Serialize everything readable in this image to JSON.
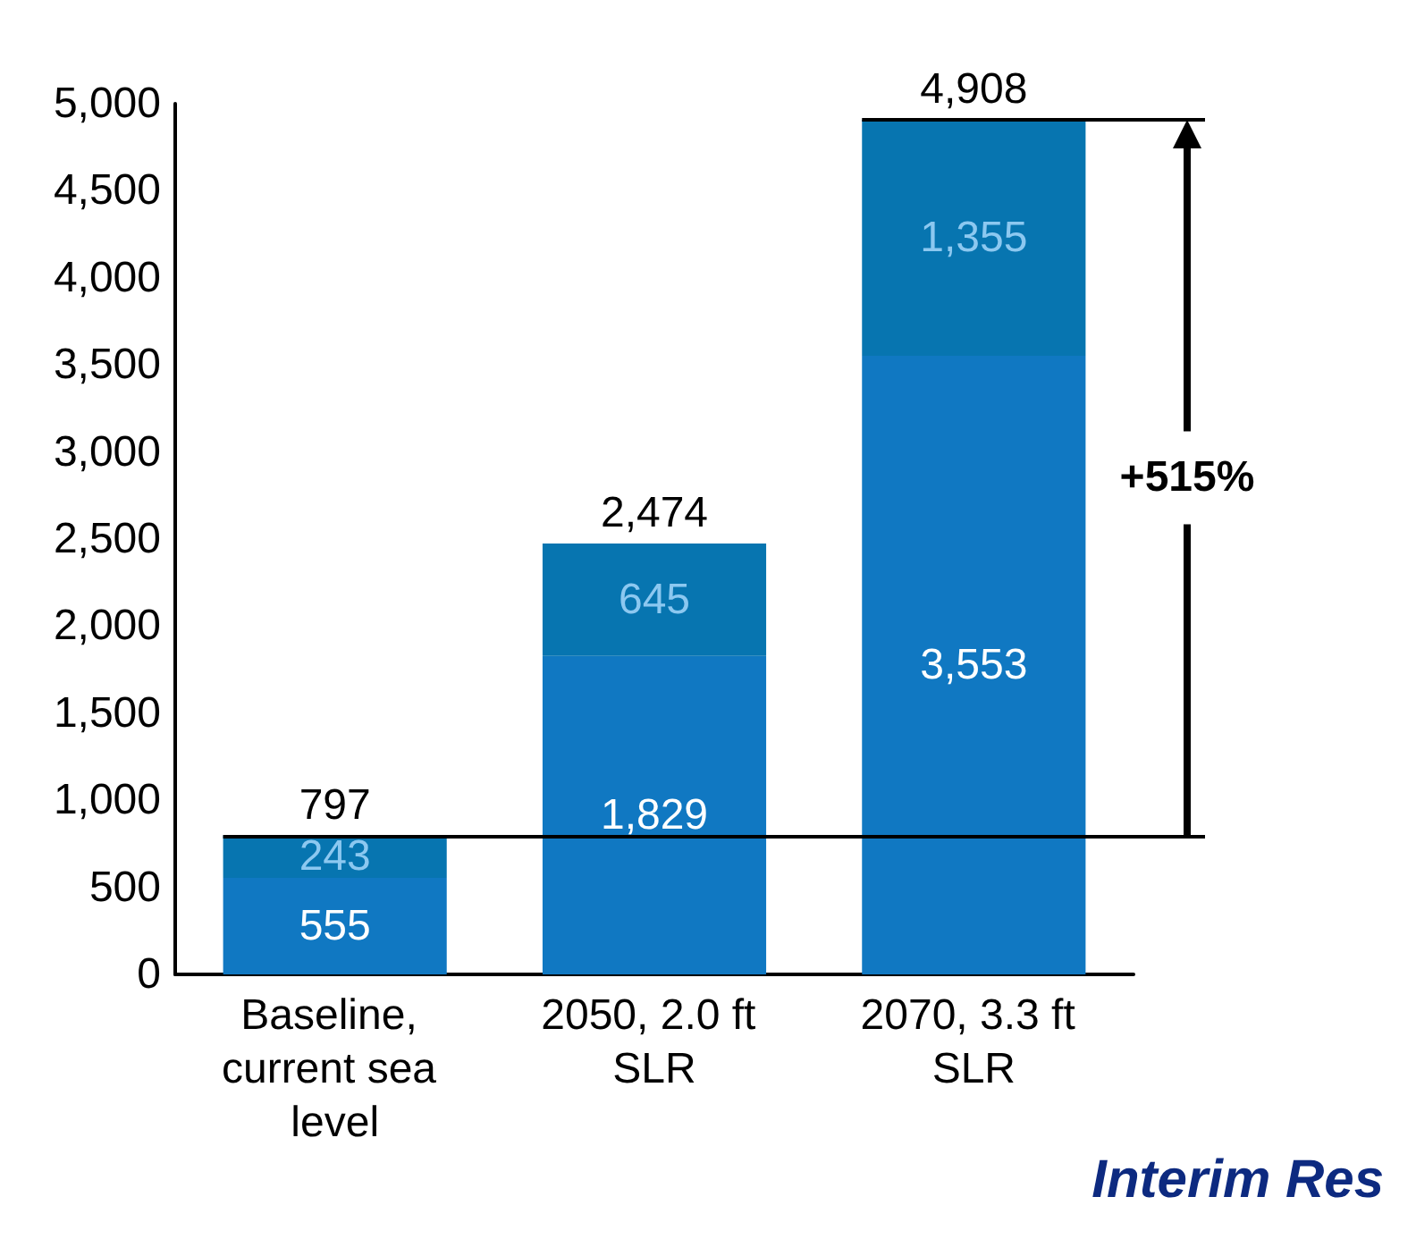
{
  "chart_data": {
    "type": "bar",
    "stacked": true,
    "categories": [
      "Baseline, current sea level",
      "2050, 2.0 ft SLR",
      "2070, 3.3 ft SLR"
    ],
    "series": [
      {
        "color": "#1078c2",
        "values": [
          555,
          1829,
          3553
        ],
        "value_labels": [
          "555",
          "1,829",
          "3,553"
        ]
      },
      {
        "color": "#0775b0",
        "values": [
          243,
          645,
          1355
        ],
        "value_labels": [
          "243",
          "645",
          "1,355"
        ]
      }
    ],
    "totals": [
      "797",
      "2,474",
      "4,908"
    ],
    "ylim": [
      0,
      5000
    ],
    "yticks": [
      0,
      500,
      {
        "value": 1000,
        "label": "1,000"
      },
      {
        "value": 1500,
        "label": "1,500"
      },
      {
        "value": 2000,
        "label": "2,000"
      },
      {
        "value": 2500,
        "label": "2,500"
      },
      {
        "value": 3000,
        "label": "3,000"
      },
      {
        "value": 3500,
        "label": "3,500"
      },
      {
        "value": 4000,
        "label": "4,000"
      },
      {
        "value": 4500,
        "label": "4,500"
      },
      {
        "value": 5000,
        "label": "5,000"
      }
    ],
    "grid": false,
    "ref_lines": [
      {
        "axis": "y",
        "value": 797,
        "color": "#000000"
      },
      {
        "axis": "y",
        "value": 4908,
        "color": "#000000"
      }
    ],
    "annotations": [
      "+515%",
      "Interim Res"
    ]
  }
}
